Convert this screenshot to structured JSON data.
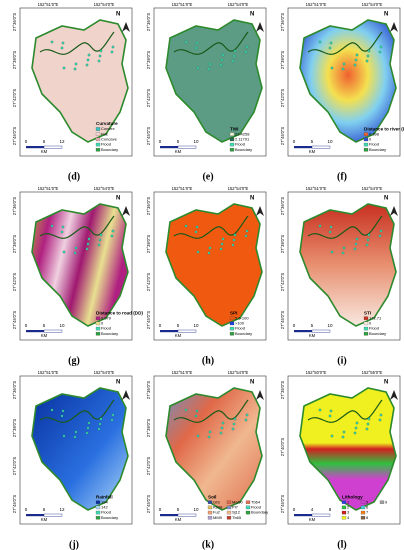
{
  "north_label": "N",
  "panels": [
    {
      "letter": "(d)",
      "legend_title": "Curvature",
      "legend_items": [
        "Convex",
        "Flat",
        "Concave",
        "Flood",
        "Boundary"
      ],
      "scale": [
        "0",
        "6",
        "12"
      ],
      "scale_unit": "KM",
      "top_coords": [
        "152°51'0\"E",
        "152°54'0\"E"
      ],
      "left_coords": [
        "27°36'0\"S",
        "27°39'0\"S",
        "27°42'0\"S",
        "27°45'0\"S"
      ]
    },
    {
      "letter": "(e)",
      "legend_title": "TWI",
      "legend_items": [
        "23.4258",
        "2.11791",
        "Flood",
        "Boundary"
      ],
      "scale": [
        "0",
        "5",
        "10"
      ],
      "scale_unit": "KM",
      "top_coords": [
        "152°51'0\"E",
        "152°54'0\"E"
      ],
      "left_coords": [
        "27°36'0\"S",
        "27°39'0\"S",
        "27°42'0\"S",
        "27°45'0\"S"
      ]
    },
    {
      "letter": "(f)",
      "legend_title": "Distance to river (DD)",
      "legend_items": [
        "0.298",
        "0",
        "Flood",
        "Boundary"
      ],
      "scale": [
        "0",
        "5",
        "10"
      ],
      "scale_unit": "KM",
      "top_coords": [
        "152°51'0\"E",
        "152°54'0\"E"
      ],
      "left_coords": [
        "27°36'0\"S",
        "27°39'0\"S",
        "27°42'0\"S",
        "27°45'0\"S"
      ]
    },
    {
      "letter": "(g)",
      "legend_title": "Distance to road (DD)",
      "legend_items": [
        "0.079",
        "0",
        "Flood",
        "Boundary"
      ],
      "scale": [
        "0",
        "5",
        "10"
      ],
      "scale_unit": "KM",
      "top_coords": [
        "152°51'0\"E",
        "152°54'0\"E"
      ],
      "left_coords": [
        "27°36'0\"S",
        "27°39'0\"S",
        "27°42'0\"S",
        "27°45'0\"S"
      ]
    },
    {
      "letter": "(h)",
      "legend_title": "SPI",
      "legend_items": [
        "5.6-100",
        ">100",
        "Flood",
        "Boundary"
      ],
      "scale": [
        "0",
        "5",
        "10"
      ],
      "scale_unit": "KM",
      "top_coords": [
        "152°51'0\"E",
        "152°54'0\"E"
      ],
      "left_coords": [
        "27°36'0\"S",
        "27°39'0\"S",
        "27°42'0\"S",
        "27°45'0\"S"
      ]
    },
    {
      "letter": "(i)",
      "legend_title": "STI",
      "legend_items": [
        "172.71",
        "0",
        "Flood",
        "Boundary"
      ],
      "scale": [
        "0",
        "5",
        "10"
      ],
      "scale_unit": "KM",
      "top_coords": [
        "152°51'0\"E",
        "152°54'0\"E"
      ],
      "left_coords": [
        "27°36'0\"S",
        "27°39'0\"S",
        "27°42'0\"S",
        "27°45'0\"S"
      ]
    },
    {
      "letter": "(j)",
      "legend_title": "Rainfall",
      "legend_items": [
        "194",
        "142",
        "Flood",
        "Boundary"
      ],
      "scale": [
        "0",
        "6",
        "12"
      ],
      "scale_unit": "KM",
      "top_coords": [
        "152°51'0\"E",
        "152°54'0\"E"
      ],
      "left_coords": [
        "27°36'0\"S",
        "27°39'0\"S",
        "27°42'0\"S",
        "27°45'0\"S"
      ]
    },
    {
      "letter": "(k)",
      "legend_title": "Soil",
      "legend_items": [
        "GIS",
        "Kb08",
        "Fu2",
        "MM9",
        "Mw50",
        "PI7",
        "Sj12",
        "Tb65",
        "Tb64",
        "Flood",
        "Boundary"
      ],
      "scale": [
        "0",
        "5",
        "10"
      ],
      "scale_unit": "KM",
      "top_coords": [
        "152°51'0\"E",
        "152°54'0\"E"
      ],
      "left_coords": [
        "27°36'0\"S",
        "27°39'0\"S",
        "27°42'0\"S",
        "27°45'0\"S"
      ]
    },
    {
      "letter": "(l)",
      "legend_title": "Lithology",
      "legend_items": [
        "1",
        "2",
        "3",
        "4",
        "5",
        "6",
        "7",
        "8",
        "9"
      ],
      "scale": [
        "0",
        "4",
        "8"
      ],
      "scale_unit": "KM",
      "top_coords": [
        "152°50'0\"E",
        "152°55'0\"E"
      ],
      "left_coords": [
        "27°35'0\"S",
        "27°40'0\"S",
        "27°45'0\"S"
      ]
    }
  ]
}
